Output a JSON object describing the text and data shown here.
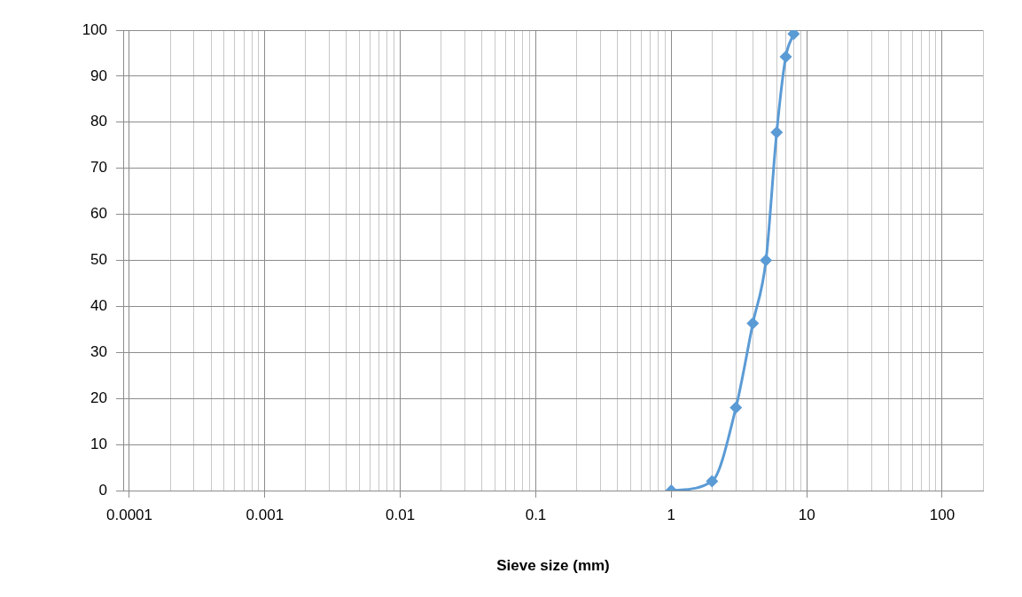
{
  "chart_data": {
    "type": "line",
    "xlabel": "Sieve size (mm)",
    "log": "x",
    "grid": true,
    "marker": "diamond",
    "line_style": "solid",
    "legend": false,
    "xlim": [
      9e-05,
      200
    ],
    "xticks": [
      0.0001,
      0.001,
      0.01,
      0.1,
      1,
      10,
      100
    ],
    "ylim": [
      0,
      100
    ],
    "yticks": [
      0,
      10,
      20,
      30,
      40,
      50,
      60,
      70,
      80,
      90,
      100
    ],
    "x": [
      1,
      2,
      3,
      4,
      5,
      6,
      7,
      8
    ],
    "series": [
      {
        "color": "#5b9bd5",
        "values": [
          0,
          2,
          18,
          36.3,
          50,
          77.8,
          94.2,
          99.2
        ]
      }
    ]
  }
}
